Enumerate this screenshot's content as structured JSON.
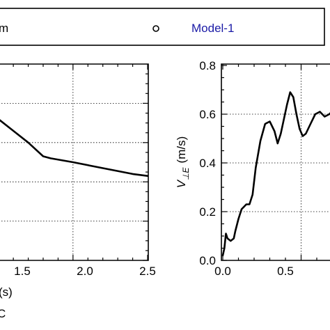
{
  "colors": {
    "legend_label": "#1a1aa6",
    "axis": "#000000",
    "grid": "#000000",
    "series": "#000000"
  },
  "legend": {
    "left_label_fragment": "m",
    "marker_icon": "open-circle-icon",
    "model_label": "Model-1"
  },
  "panel_left": {
    "xlabel_fragment": "(s)",
    "caption_fragment": "C",
    "x_tick_labels": [
      "1.5",
      "2.0",
      "2.5"
    ]
  },
  "panel_right": {
    "ylabel_main": "V",
    "ylabel_sub": "⊥E",
    "ylabel_unit": "(m/s)",
    "y_tick_labels": [
      "0.0",
      "0.2",
      "0.4",
      "0.6",
      "0.8"
    ],
    "x_tick_labels": [
      "0.0",
      "0.5"
    ]
  },
  "chart_data": [
    {
      "type": "line",
      "xlabel": "(s)",
      "ylabel": "",
      "xlim": [
        1.1,
        2.5
      ],
      "ylim": [
        0,
        1
      ],
      "grid": true,
      "x_ticks": [
        1.5,
        2.0,
        2.5
      ],
      "series": [
        {
          "x": [
            1.1,
            1.2,
            1.3,
            1.4,
            1.5,
            1.6,
            1.7,
            1.8,
            1.85,
            2.0,
            2.2,
            2.4,
            2.5
          ],
          "y": [
            0.82,
            0.81,
            0.79,
            0.77,
            0.72,
            0.66,
            0.6,
            0.53,
            0.52,
            0.5,
            0.47,
            0.44,
            0.43
          ]
        }
      ]
    },
    {
      "type": "line",
      "xlabel": "",
      "ylabel": "V⊥E (m/s)",
      "xlim": [
        0,
        0.8
      ],
      "ylim": [
        0,
        0.8
      ],
      "grid": true,
      "x_ticks": [
        0.0,
        0.5
      ],
      "y_ticks": [
        0.0,
        0.2,
        0.4,
        0.6,
        0.8
      ],
      "series": [
        {
          "x": [
            0.0,
            0.01,
            0.02,
            0.03,
            0.05,
            0.07,
            0.08,
            0.1,
            0.12,
            0.15,
            0.17,
            0.19,
            0.21,
            0.24,
            0.27,
            0.3,
            0.33,
            0.35,
            0.37,
            0.39,
            0.41,
            0.43,
            0.45,
            0.47,
            0.49,
            0.51,
            0.53,
            0.56,
            0.59,
            0.62,
            0.65,
            0.68,
            0.71,
            0.74,
            0.77,
            0.8
          ],
          "y": [
            0.02,
            0.05,
            0.11,
            0.09,
            0.08,
            0.09,
            0.12,
            0.17,
            0.21,
            0.23,
            0.23,
            0.27,
            0.38,
            0.49,
            0.56,
            0.57,
            0.53,
            0.48,
            0.52,
            0.58,
            0.64,
            0.69,
            0.67,
            0.6,
            0.54,
            0.51,
            0.52,
            0.56,
            0.6,
            0.61,
            0.59,
            0.6,
            0.62,
            0.6,
            0.61,
            0.6
          ]
        }
      ]
    }
  ]
}
